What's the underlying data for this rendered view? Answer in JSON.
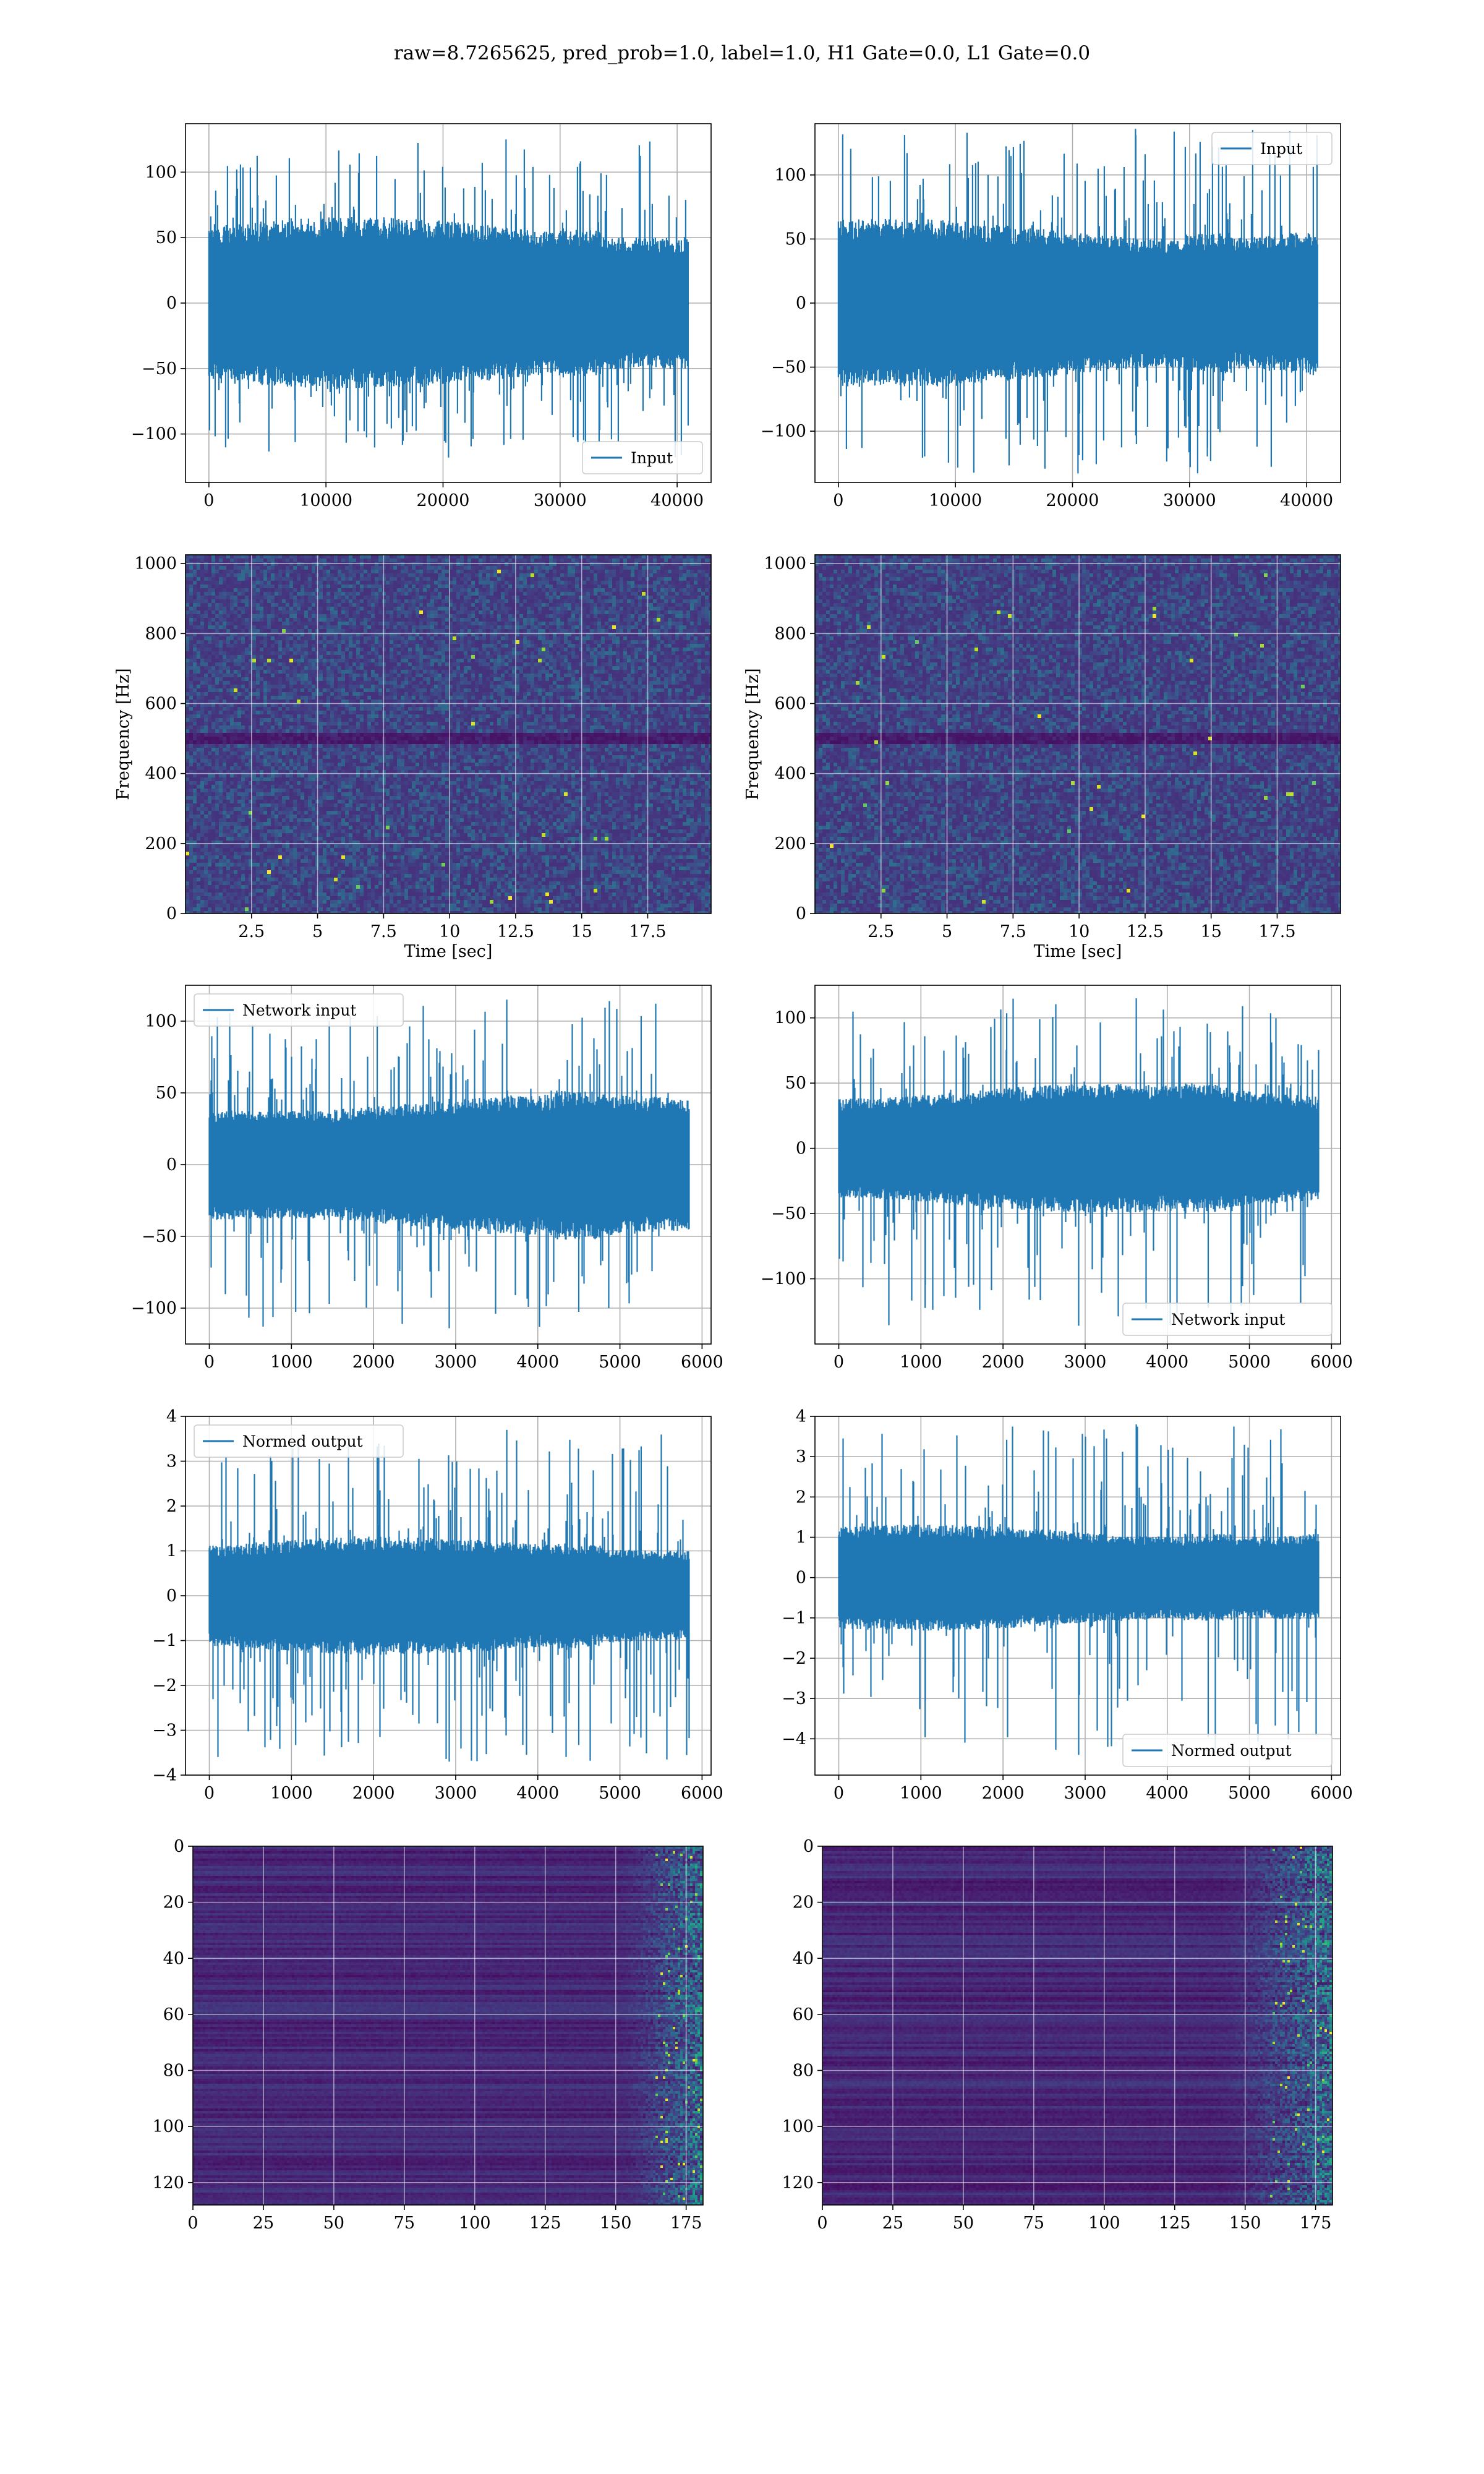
{
  "figure": {
    "suptitle": "raw=8.7265625, pred_prob=1.0, label=1.0, H1 Gate=0.0, L1 Gate=0.0",
    "line_color": "#1f77b4",
    "grid_color": "#b0b0b0"
  },
  "chart_data": [
    {
      "id": "input-h1",
      "type": "line",
      "legend": "Input",
      "legend_loc": "lower right",
      "xlim": [
        -2000,
        42900
      ],
      "ylim": [
        -137,
        137
      ],
      "xticks": [
        0,
        10000,
        20000,
        30000,
        40000
      ],
      "yticks": [
        -100,
        -50,
        0,
        50,
        100
      ],
      "series": [
        {
          "name": "Input",
          "x_range": [
            0,
            40960
          ],
          "n_points": 40960,
          "envelope": {
            "core": [
              -60,
              60
            ],
            "peaks": [
              -118,
              125
            ]
          }
        }
      ]
    },
    {
      "id": "input-l1",
      "type": "line",
      "legend": "Input",
      "legend_loc": "upper right",
      "xlim": [
        -2000,
        42900
      ],
      "ylim": [
        -140,
        140
      ],
      "xticks": [
        0,
        10000,
        20000,
        30000,
        40000
      ],
      "yticks": [
        -100,
        -50,
        0,
        50,
        100
      ],
      "series": [
        {
          "name": "Input",
          "x_range": [
            0,
            40960
          ],
          "n_points": 40960,
          "envelope": {
            "core": [
              -60,
              60
            ],
            "peaks": [
              -133,
              136
            ]
          }
        }
      ]
    },
    {
      "id": "spec-h1",
      "type": "heatmap",
      "colormap": "viridis",
      "xlabel": "Time [sec]",
      "ylabel": "Frequency [Hz]",
      "xlim": [
        0,
        19.9
      ],
      "ylim": [
        0,
        1025
      ],
      "xticks": [
        2.5,
        5.0,
        7.5,
        10.0,
        12.5,
        15.0,
        17.5
      ],
      "yticks": [
        0,
        200,
        400,
        600,
        800,
        1000
      ],
      "dark_band_hz": [
        480,
        520
      ]
    },
    {
      "id": "spec-l1",
      "type": "heatmap",
      "colormap": "viridis",
      "xlabel": "Time [sec]",
      "ylabel": "Frequency [Hz]",
      "xlim": [
        0,
        19.9
      ],
      "ylim": [
        0,
        1025
      ],
      "xticks": [
        2.5,
        5.0,
        7.5,
        10.0,
        12.5,
        15.0,
        17.5
      ],
      "yticks": [
        0,
        200,
        400,
        600,
        800,
        1000
      ],
      "dark_band_hz": [
        480,
        520
      ]
    },
    {
      "id": "net-h1",
      "type": "line",
      "legend": "Network input",
      "legend_loc": "upper left",
      "xlim": [
        -290,
        6110
      ],
      "ylim": [
        -125,
        125
      ],
      "xticks": [
        0,
        1000,
        2000,
        3000,
        4000,
        5000,
        6000
      ],
      "yticks": [
        -100,
        -50,
        0,
        50,
        100
      ],
      "series": [
        {
          "name": "Network input",
          "x_range": [
            0,
            5840
          ],
          "n_points": 5840,
          "envelope": {
            "core": [
              -45,
              45
            ],
            "peaks": [
              -114,
              115
            ]
          }
        }
      ]
    },
    {
      "id": "net-l1",
      "type": "line",
      "legend": "Network input",
      "legend_loc": "lower right",
      "xlim": [
        -290,
        6110
      ],
      "ylim": [
        -150,
        125
      ],
      "xticks": [
        0,
        1000,
        2000,
        3000,
        4000,
        5000,
        6000
      ],
      "yticks": [
        -100,
        -50,
        0,
        50,
        100
      ],
      "series": [
        {
          "name": "Network input",
          "x_range": [
            0,
            5840
          ],
          "n_points": 5840,
          "envelope": {
            "core": [
              -45,
              45
            ],
            "peaks": [
              -136,
              115
            ]
          }
        }
      ]
    },
    {
      "id": "norm-h1",
      "type": "line",
      "legend": "Normed output",
      "legend_loc": "upper left",
      "xlim": [
        -290,
        6110
      ],
      "ylim": [
        -4.0,
        4.0
      ],
      "xticks": [
        0,
        1000,
        2000,
        3000,
        4000,
        5000,
        6000
      ],
      "yticks": [
        -4,
        -3,
        -2,
        -1,
        0,
        1,
        2,
        3,
        4
      ],
      "series": [
        {
          "name": "Normed output",
          "x_range": [
            0,
            5840
          ],
          "n_points": 5840,
          "envelope": {
            "core": [
              -1.2,
              1.2
            ],
            "peaks": [
              -3.7,
              3.7
            ]
          }
        }
      ]
    },
    {
      "id": "norm-l1",
      "type": "line",
      "legend": "Normed output",
      "legend_loc": "lower right",
      "xlim": [
        -290,
        6110
      ],
      "ylim": [
        -4.9,
        4.0
      ],
      "xticks": [
        0,
        1000,
        2000,
        3000,
        4000,
        5000,
        6000
      ],
      "yticks": [
        -4,
        -3,
        -2,
        -1,
        0,
        1,
        2,
        3,
        4
      ],
      "series": [
        {
          "name": "Normed output",
          "x_range": [
            0,
            5840
          ],
          "n_points": 5840,
          "envelope": {
            "core": [
              -1.2,
              1.2
            ],
            "peaks": [
              -4.4,
              3.8
            ]
          }
        }
      ]
    },
    {
      "id": "feat-h1",
      "type": "heatmap",
      "colormap": "viridis",
      "xlim": [
        0,
        181
      ],
      "ylim": [
        128,
        0
      ],
      "xticks": [
        0,
        25,
        50,
        75,
        100,
        125,
        150,
        175
      ],
      "yticks": [
        0,
        20,
        40,
        60,
        80,
        100,
        120
      ],
      "active_columns": [
        150,
        181
      ]
    },
    {
      "id": "feat-l1",
      "type": "heatmap",
      "colormap": "viridis",
      "xlim": [
        0,
        181
      ],
      "ylim": [
        128,
        0
      ],
      "xticks": [
        0,
        25,
        50,
        75,
        100,
        125,
        150,
        175
      ],
      "yticks": [
        0,
        20,
        40,
        60,
        80,
        100,
        120
      ],
      "active_columns": [
        140,
        181
      ]
    }
  ]
}
